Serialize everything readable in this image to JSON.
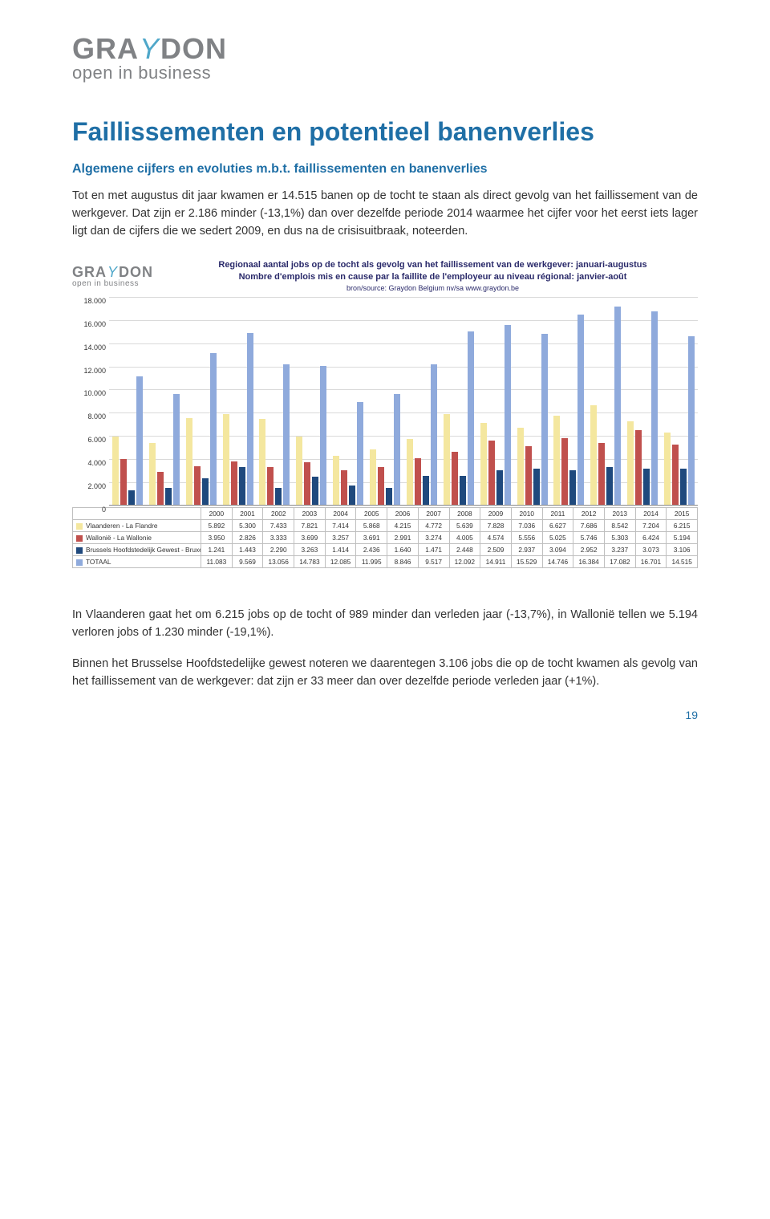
{
  "logo": {
    "seg1": "GRA",
    "seg2": "Y",
    "seg3": "DON",
    "tagline": "open in business"
  },
  "heading": "Faillissementen en potentieel banenverlies",
  "subheading": "Algemene cijfers en evoluties m.b.t. faillissementen en banenverlies",
  "para1": "Tot en met augustus dit jaar kwamen er 14.515 banen op de tocht te staan als direct gevolg van het faillissement van de werkgever. Dat zijn er 2.186 minder (-13,1%) dan over dezelfde periode 2014 waarmee het cijfer voor het eerst iets lager ligt dan de cijfers die we sedert 2009, en dus na de crisisuitbraak, noteerden.",
  "para2": "In Vlaanderen gaat het om 6.215 jobs op de tocht of 989 minder dan verleden jaar (-13,7%), in Wallonië tellen we 5.194 verloren jobs of 1.230 minder (-19,1%).",
  "para3": "Binnen het Brusselse Hoofdstedelijke gewest noteren we daarentegen 3.106 jobs die op de tocht kwamen als gevolg van het faillissement van de werkgever: dat zijn er 33  meer dan over dezelfde periode verleden jaar (+1%).",
  "page_number": "19",
  "chart": {
    "title_line1": "Regionaal aantal jobs op de tocht als gevolg van het faillissement van de werkgever: januari-augustus",
    "title_line2": "Nombre d'emplois mis en cause  par la faillite de l'employeur au niveau régional: janvier-août",
    "source": "bron/source: Graydon Belgium nv/sa   www.graydon.be",
    "type": "grouped-bar",
    "y_max": 18000,
    "y_ticks": [
      0,
      2000,
      4000,
      6000,
      8000,
      10000,
      12000,
      14000,
      16000,
      18000
    ],
    "y_tick_labels": [
      "0",
      "2.000",
      "4.000",
      "6.000",
      "8.000",
      "10.000",
      "12.000",
      "14.000",
      "16.000",
      "18.000"
    ],
    "years": [
      "2000",
      "2001",
      "2002",
      "2003",
      "2004",
      "2005",
      "2006",
      "2007",
      "2008",
      "2009",
      "2010",
      "2011",
      "2012",
      "2013",
      "2014",
      "2015"
    ],
    "series": [
      {
        "name": "Vlaanderen - La Flandre",
        "color": "#f4e79f",
        "values": [
          5892,
          5300,
          7433,
          7821,
          7414,
          5868,
          4215,
          4772,
          5639,
          7828,
          7036,
          6627,
          7686,
          8542,
          7204,
          6215
        ]
      },
      {
        "name": "Wallonië - La Wallonie",
        "color": "#c0504d",
        "values": [
          3950,
          2826,
          3333,
          3699,
          3257,
          3691,
          2991,
          3274,
          4005,
          4574,
          5556,
          5025,
          5746,
          5303,
          6424,
          5194
        ]
      },
      {
        "name": "Brussels Hoofdstedelijk Gewest - Bruxelles-Capitale",
        "color": "#1f497d",
        "values": [
          1241,
          1443,
          2290,
          3263,
          1414,
          2436,
          1640,
          1471,
          2448,
          2509,
          2937,
          3094,
          2952,
          3237,
          3073,
          3106
        ]
      },
      {
        "name": "TOTAAL",
        "color": "#8faadc",
        "values": [
          11083,
          9569,
          13056,
          14783,
          12085,
          11995,
          8846,
          9517,
          12092,
          14911,
          15529,
          14746,
          16384,
          17082,
          16701,
          14515
        ]
      }
    ]
  },
  "colors": {
    "heading": "#1f6fa6",
    "logo_gray": "#808285",
    "logo_accent": "#4fa7c9",
    "chart_title": "#2a2a6a",
    "grid": "#d9d9d9",
    "table_border": "#bfbfbf"
  }
}
